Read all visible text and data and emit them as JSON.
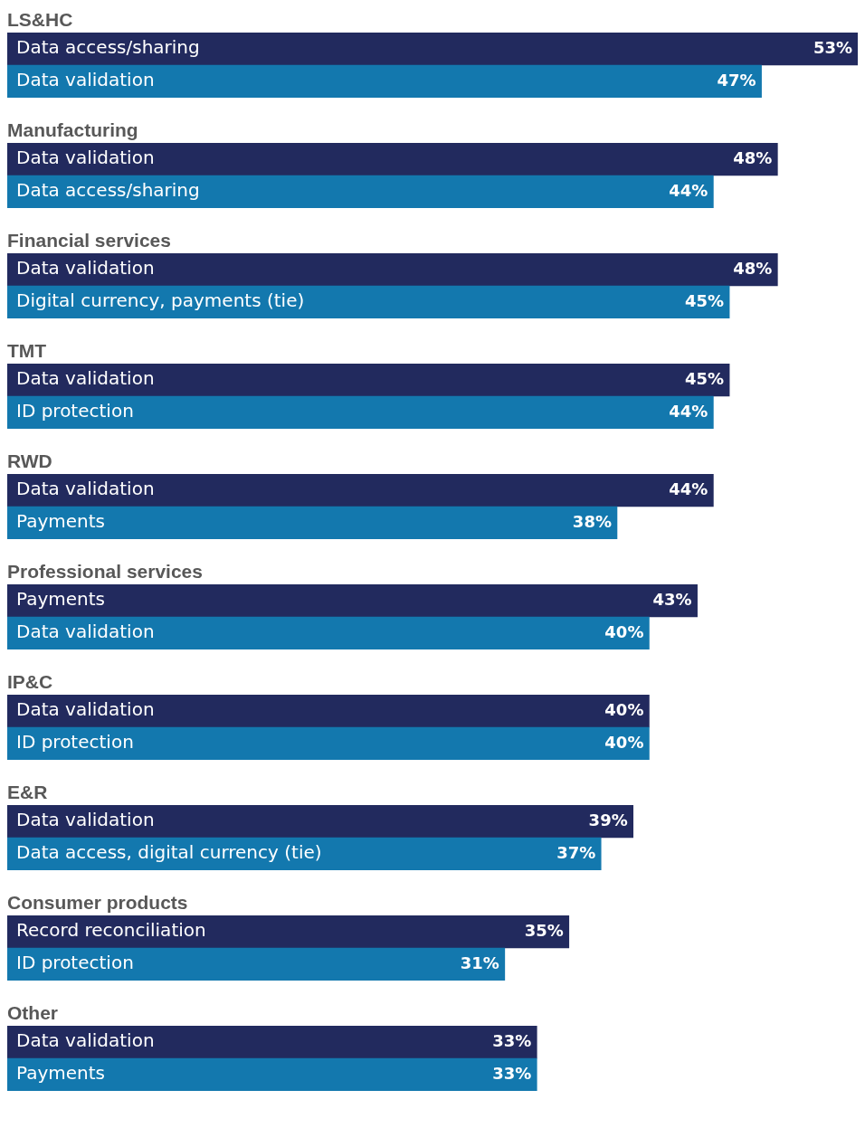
{
  "chart_data": [
    {
      "type": "bar",
      "orientation": "horizontal",
      "title": "LS&HC",
      "categories": [
        "Data access/sharing",
        "Data validation"
      ],
      "values": [
        53,
        47
      ],
      "value_labels": [
        "53%",
        "47%"
      ],
      "colors": [
        "#222a5e",
        "#1378ae"
      ],
      "tick_labels": false
    },
    {
      "type": "bar",
      "orientation": "horizontal",
      "title": "Manufacturing",
      "categories": [
        "Data validation",
        "Data access/sharing"
      ],
      "values": [
        48,
        44
      ],
      "value_labels": [
        "48%",
        "44%"
      ],
      "colors": [
        "#222a5e",
        "#1378ae"
      ],
      "tick_labels": false
    },
    {
      "type": "bar",
      "orientation": "horizontal",
      "title": "Financial services",
      "categories": [
        "Data validation",
        "Digital currency, payments (tie)"
      ],
      "values": [
        48,
        45
      ],
      "value_labels": [
        "48%",
        "45%"
      ],
      "colors": [
        "#222a5e",
        "#1378ae"
      ],
      "tick_labels": false
    },
    {
      "type": "bar",
      "orientation": "horizontal",
      "title": "TMT",
      "categories": [
        "Data validation",
        "ID protection"
      ],
      "values": [
        45,
        44
      ],
      "value_labels": [
        "45%",
        "44%"
      ],
      "colors": [
        "#222a5e",
        "#1378ae"
      ],
      "tick_labels": false
    },
    {
      "type": "bar",
      "orientation": "horizontal",
      "title": "RWD",
      "categories": [
        "Data validation",
        "Payments"
      ],
      "values": [
        44,
        38
      ],
      "value_labels": [
        "44%",
        "38%"
      ],
      "colors": [
        "#222a5e",
        "#1378ae"
      ],
      "tick_labels": false
    },
    {
      "type": "bar",
      "orientation": "horizontal",
      "title": "Professional services",
      "categories": [
        "Payments",
        "Data validation"
      ],
      "values": [
        43,
        40
      ],
      "value_labels": [
        "43%",
        "40%"
      ],
      "colors": [
        "#222a5e",
        "#1378ae"
      ],
      "tick_labels": false
    },
    {
      "type": "bar",
      "orientation": "horizontal",
      "title": "IP&C",
      "categories": [
        "Data validation",
        "ID protection"
      ],
      "values": [
        40,
        40
      ],
      "value_labels": [
        "40%",
        "40%"
      ],
      "colors": [
        "#222a5e",
        "#1378ae"
      ],
      "tick_labels": false
    },
    {
      "type": "bar",
      "orientation": "horizontal",
      "title": "E&R",
      "categories": [
        "Data validation",
        "Data access, digital currency (tie)"
      ],
      "values": [
        39,
        37
      ],
      "value_labels": [
        "39%",
        "37%"
      ],
      "colors": [
        "#222a5e",
        "#1378ae"
      ],
      "tick_labels": false
    },
    {
      "type": "bar",
      "orientation": "horizontal",
      "title": "Consumer products",
      "categories": [
        "Record reconciliation",
        "ID protection"
      ],
      "values": [
        35,
        31
      ],
      "value_labels": [
        "35%",
        "31%"
      ],
      "colors": [
        "#222a5e",
        "#1378ae"
      ],
      "tick_labels": false
    },
    {
      "type": "bar",
      "orientation": "horizontal",
      "title": "Other",
      "categories": [
        "Data validation",
        "Payments"
      ],
      "values": [
        33,
        33
      ],
      "value_labels": [
        "33%",
        "33%"
      ],
      "colors": [
        "#222a5e",
        "#1378ae"
      ],
      "tick_labels": false
    }
  ]
}
